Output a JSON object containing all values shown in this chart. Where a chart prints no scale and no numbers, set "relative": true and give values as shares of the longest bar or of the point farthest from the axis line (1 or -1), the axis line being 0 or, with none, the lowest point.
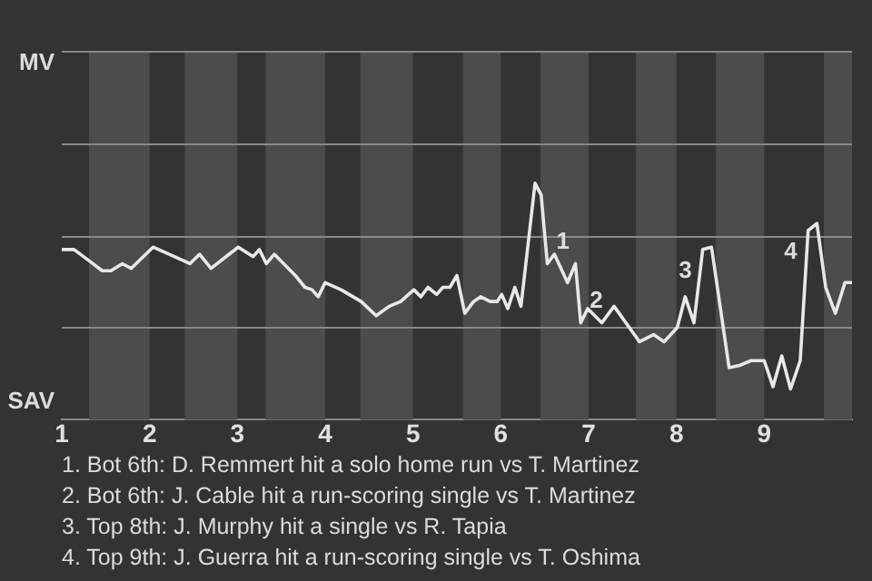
{
  "chart_data": {
    "type": "line",
    "relative": true,
    "x": [
      1,
      1.14,
      1.32,
      1.46,
      1.56,
      1.69,
      1.79,
      2.04,
      2.46,
      2.57,
      2.7,
      3.01,
      3.18,
      3.25,
      3.33,
      3.42,
      3.66,
      3.77,
      3.85,
      3.92,
      4,
      4.18,
      4.41,
      4.58,
      4.73,
      4.86,
      5.01,
      5.09,
      5.17,
      5.27,
      5.34,
      5.42,
      5.5,
      5.59,
      5.69,
      5.77,
      5.88,
      5.96,
      6.01,
      6.08,
      6.16,
      6.23,
      6.39,
      6.46,
      6.53,
      6.61,
      6.76,
      6.85,
      6.91,
      6.99,
      7.15,
      7.29,
      7.58,
      7.74,
      7.86,
      8.01,
      8.1,
      8.2,
      8.3,
      8.4,
      8.6,
      8.72,
      8.85,
      9,
      9.1,
      9.2,
      9.3,
      9.41,
      9.5,
      9.6,
      9.7,
      9.81,
      9.92,
      10
    ],
    "series": [
      {
        "color": "#e8e8e8",
        "values": [
          0.72,
          0.72,
          0.67,
          0.63,
          0.63,
          0.66,
          0.64,
          0.73,
          0.66,
          0.7,
          0.64,
          0.73,
          0.69,
          0.72,
          0.66,
          0.7,
          0.61,
          0.56,
          0.55,
          0.52,
          0.58,
          0.55,
          0.5,
          0.44,
          0.48,
          0.5,
          0.55,
          0.52,
          0.56,
          0.53,
          0.56,
          0.56,
          0.61,
          0.45,
          0.5,
          0.52,
          0.5,
          0.5,
          0.53,
          0.47,
          0.56,
          0.48,
          1,
          0.95,
          0.66,
          0.7,
          0.58,
          0.66,
          0.41,
          0.47,
          0.41,
          0.48,
          0.33,
          0.36,
          0.33,
          0.39,
          0.52,
          0.41,
          0.72,
          0.73,
          0.22,
          0.23,
          0.25,
          0.25,
          0.14,
          0.27,
          0.13,
          0.25,
          0.8,
          0.83,
          0.56,
          0.45,
          0.58,
          0.58
        ]
      }
    ],
    "xlim": [
      1,
      10
    ],
    "xticks": [
      1,
      2,
      3,
      4,
      5,
      6,
      7,
      8,
      9
    ],
    "legend": false,
    "marker": "none",
    "line_style": "solid",
    "ref_lines": [
      {
        "axis": "y",
        "value": 0.39,
        "color": "#8a8987"
      },
      {
        "axis": "y",
        "value": 0.78,
        "color": "#8a8987"
      },
      {
        "axis": "y",
        "value": 1.17,
        "color": "#8a8987"
      },
      {
        "axis": "y",
        "value": 1.56,
        "color": "#8a8987"
      }
    ],
    "bands": [
      {
        "axis": "x",
        "from": 1.31,
        "to": 2,
        "color": "#4d4c4a"
      },
      {
        "axis": "x",
        "from": 2.4,
        "to": 3,
        "color": "#4d4c4a"
      },
      {
        "axis": "x",
        "from": 3.32,
        "to": 4,
        "color": "#4d4c4a"
      },
      {
        "axis": "x",
        "from": 4.4,
        "to": 5,
        "color": "#4d4c4a"
      },
      {
        "axis": "x",
        "from": 5.57,
        "to": 6,
        "color": "#4d4c4a"
      },
      {
        "axis": "x",
        "from": 6.45,
        "to": 7,
        "color": "#4d4c4a"
      },
      {
        "axis": "x",
        "from": 7.54,
        "to": 8,
        "color": "#4d4c4a"
      },
      {
        "axis": "x",
        "from": 8.45,
        "to": 9,
        "color": "#4d4c4a"
      },
      {
        "axis": "x",
        "from": 9.68,
        "to": 10,
        "color": "#4d4c4a"
      }
    ],
    "annotations": [
      "MV",
      "SAV",
      {
        "text": "1",
        "x": 6.53,
        "y": 0.66
      },
      {
        "text": "2",
        "x": 6.91,
        "y": 0.41
      },
      {
        "text": "3",
        "x": 8.3,
        "y": 0.72
      },
      {
        "text": "4",
        "x": 9.5,
        "y": 0.8
      },
      "1. Bot 6th: D. Remmert hit a solo home run vs T. Martinez",
      "2. Bot 6th: J. Cable hit a run-scoring single vs T. Martinez",
      "3. Top 8th: J. Murphy hit a single vs R. Tapia",
      "4. Top 9th: J. Guerra hit a run-scoring single vs T. Oshima"
    ]
  }
}
